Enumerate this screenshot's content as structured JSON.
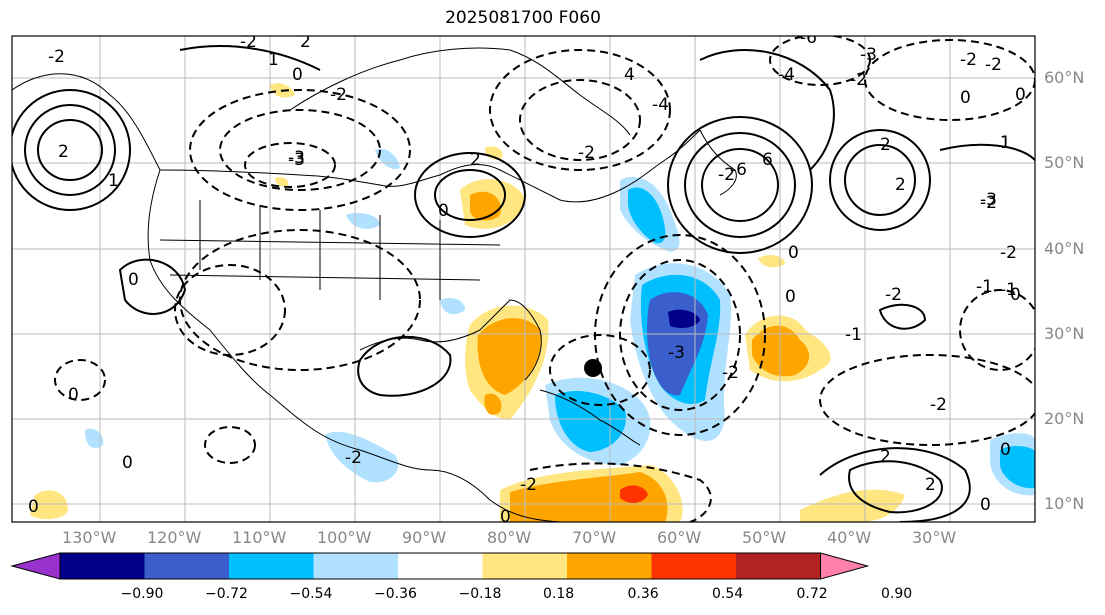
{
  "title": "2025081700 F060",
  "lon_labels": [
    "130°W",
    "120°W",
    "110°W",
    "100°W",
    "90°W",
    "80°W",
    "70°W",
    "60°W",
    "50°W",
    "40°W",
    "30°W"
  ],
  "lat_labels": [
    "60°N",
    "50°N",
    "40°N",
    "30°N",
    "20°N",
    "10°N"
  ],
  "colorbar": {
    "ticks": [
      "−0.90",
      "−0.72",
      "−0.54",
      "−0.36",
      "−0.18",
      "0.18",
      "0.36",
      "0.54",
      "0.72",
      "0.90"
    ],
    "colors": [
      "#9932cc",
      "#00008b",
      "#3a5fcd",
      "#00bfff",
      "#b0e2ff",
      "#ffffff",
      "#ffe680",
      "#ffa500",
      "#ff3300",
      "#b22222",
      "#ff80aa"
    ]
  },
  "contour_labels": [
    "-2",
    "2",
    "1",
    "0",
    "-2",
    "-2",
    "-3",
    "2",
    "2",
    "0",
    "-3",
    "-2",
    "-6",
    "-4",
    "-2",
    "-3",
    "-2",
    "-2",
    "2",
    "1",
    "-6",
    "6",
    "-4",
    "4",
    "-2",
    "0",
    "2",
    "-2",
    "0",
    "0",
    "-3",
    "-2",
    "-2",
    "0",
    "0",
    "-2",
    "-1",
    "-2",
    "0",
    "0",
    "0",
    "-2",
    "0",
    "1",
    "2",
    "2",
    "0",
    "0",
    "-1",
    "-2",
    "-3",
    "-1",
    "2",
    "1",
    "0"
  ]
}
